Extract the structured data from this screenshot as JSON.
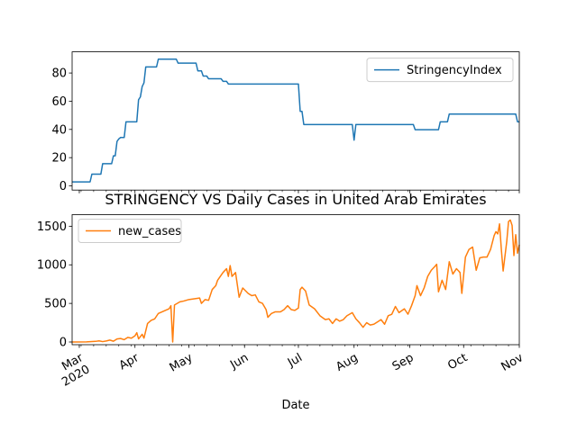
{
  "chart_data": [
    {
      "type": "line",
      "title": "",
      "xlabel": "",
      "ylabel": "",
      "legend": "top-right",
      "grid": false,
      "x_range": [
        "2020-02-26",
        "2020-11-01"
      ],
      "ylim": [
        -3,
        95
      ],
      "yticks": [
        0,
        20,
        40,
        60,
        80
      ],
      "series": [
        {
          "name": "StringencyIndex",
          "color": "#1f77b4",
          "points": [
            [
              "2020-02-26",
              2.8
            ],
            [
              "2020-03-07",
              2.8
            ],
            [
              "2020-03-08",
              8.3
            ],
            [
              "2020-03-13",
              8.3
            ],
            [
              "2020-03-14",
              15.7
            ],
            [
              "2020-03-19",
              15.7
            ],
            [
              "2020-03-20",
              21.3
            ],
            [
              "2020-03-21",
              21.3
            ],
            [
              "2020-03-22",
              31.5
            ],
            [
              "2020-03-23",
              33.3
            ],
            [
              "2020-03-24",
              34.3
            ],
            [
              "2020-03-26",
              34.3
            ],
            [
              "2020-03-27",
              45.4
            ],
            [
              "2020-04-02",
              45.4
            ],
            [
              "2020-04-03",
              61.1
            ],
            [
              "2020-04-04",
              63.0
            ],
            [
              "2020-04-05",
              70.4
            ],
            [
              "2020-04-06",
              73.0
            ],
            [
              "2020-04-07",
              84.3
            ],
            [
              "2020-04-13",
              84.3
            ],
            [
              "2020-04-14",
              89.8
            ],
            [
              "2020-04-24",
              89.8
            ],
            [
              "2020-04-25",
              87.0
            ],
            [
              "2020-05-05",
              87.0
            ],
            [
              "2020-05-06",
              81.5
            ],
            [
              "2020-05-08",
              81.5
            ],
            [
              "2020-05-09",
              77.8
            ],
            [
              "2020-05-11",
              77.8
            ],
            [
              "2020-05-12",
              75.9
            ],
            [
              "2020-05-19",
              75.9
            ],
            [
              "2020-05-20",
              74.1
            ],
            [
              "2020-05-22",
              74.1
            ],
            [
              "2020-05-23",
              72.2
            ],
            [
              "2020-07-01",
              72.2
            ],
            [
              "2020-07-02",
              52.8
            ],
            [
              "2020-07-03",
              52.8
            ],
            [
              "2020-07-04",
              43.5
            ],
            [
              "2020-07-31",
              43.5
            ],
            [
              "2020-08-01",
              32.4
            ],
            [
              "2020-08-02",
              43.5
            ],
            [
              "2020-09-03",
              43.5
            ],
            [
              "2020-09-04",
              39.8
            ],
            [
              "2020-09-17",
              39.8
            ],
            [
              "2020-09-18",
              45.4
            ],
            [
              "2020-09-22",
              45.4
            ],
            [
              "2020-09-23",
              50.9
            ],
            [
              "2020-10-30",
              50.9
            ],
            [
              "2020-10-31",
              45.4
            ],
            [
              "2020-11-01",
              45.4
            ]
          ]
        }
      ]
    },
    {
      "type": "line",
      "title": "STRINGENCY VS Daily Cases in United Arab Emirates",
      "xlabel": "Date",
      "ylabel": "",
      "legend": "top-left",
      "grid": false,
      "x_range": [
        "2020-02-26",
        "2020-11-01"
      ],
      "ylim": [
        -35,
        1650
      ],
      "yticks": [
        0,
        500,
        1000,
        1500
      ],
      "xticks": [
        {
          "date": "2020-03-01",
          "label": "Mar",
          "sub": "2020"
        },
        {
          "date": "2020-04-01",
          "label": "Apr",
          "sub": ""
        },
        {
          "date": "2020-05-01",
          "label": "May",
          "sub": ""
        },
        {
          "date": "2020-06-01",
          "label": "Jun",
          "sub": ""
        },
        {
          "date": "2020-07-01",
          "label": "Jul",
          "sub": ""
        },
        {
          "date": "2020-08-01",
          "label": "Aug",
          "sub": ""
        },
        {
          "date": "2020-09-01",
          "label": "Sep",
          "sub": ""
        },
        {
          "date": "2020-10-01",
          "label": "Oct",
          "sub": ""
        },
        {
          "date": "2020-11-01",
          "label": "Nov",
          "sub": ""
        }
      ],
      "series": [
        {
          "name": "new_cases",
          "color": "#ff7f0e",
          "points": [
            [
              "2020-02-26",
              0
            ],
            [
              "2020-03-05",
              2
            ],
            [
              "2020-03-10",
              8
            ],
            [
              "2020-03-12",
              15
            ],
            [
              "2020-03-14",
              5
            ],
            [
              "2020-03-16",
              13
            ],
            [
              "2020-03-18",
              25
            ],
            [
              "2020-03-20",
              10
            ],
            [
              "2020-03-22",
              40
            ],
            [
              "2020-03-24",
              45
            ],
            [
              "2020-03-26",
              30
            ],
            [
              "2020-03-28",
              60
            ],
            [
              "2020-03-30",
              50
            ],
            [
              "2020-04-01",
              80
            ],
            [
              "2020-04-02",
              120
            ],
            [
              "2020-04-03",
              40
            ],
            [
              "2020-04-05",
              100
            ],
            [
              "2020-04-06",
              50
            ],
            [
              "2020-04-08",
              240
            ],
            [
              "2020-04-10",
              280
            ],
            [
              "2020-04-12",
              300
            ],
            [
              "2020-04-14",
              370
            ],
            [
              "2020-04-17",
              400
            ],
            [
              "2020-04-20",
              430
            ],
            [
              "2020-04-21",
              470
            ],
            [
              "2020-04-22",
              0
            ],
            [
              "2020-04-23",
              480
            ],
            [
              "2020-04-26",
              520
            ],
            [
              "2020-04-28",
              530
            ],
            [
              "2020-05-01",
              550
            ],
            [
              "2020-05-04",
              560
            ],
            [
              "2020-05-07",
              570
            ],
            [
              "2020-05-08",
              500
            ],
            [
              "2020-05-10",
              550
            ],
            [
              "2020-05-12",
              540
            ],
            [
              "2020-05-14",
              680
            ],
            [
              "2020-05-16",
              730
            ],
            [
              "2020-05-17",
              800
            ],
            [
              "2020-05-20",
              900
            ],
            [
              "2020-05-22",
              950
            ],
            [
              "2020-05-23",
              850
            ],
            [
              "2020-05-24",
              990
            ],
            [
              "2020-05-25",
              850
            ],
            [
              "2020-05-27",
              900
            ],
            [
              "2020-05-29",
              580
            ],
            [
              "2020-05-31",
              700
            ],
            [
              "2020-06-03",
              630
            ],
            [
              "2020-06-05",
              600
            ],
            [
              "2020-06-07",
              610
            ],
            [
              "2020-06-09",
              520
            ],
            [
              "2020-06-11",
              500
            ],
            [
              "2020-06-13",
              420
            ],
            [
              "2020-06-14",
              320
            ],
            [
              "2020-06-16",
              370
            ],
            [
              "2020-06-18",
              390
            ],
            [
              "2020-06-21",
              390
            ],
            [
              "2020-06-23",
              420
            ],
            [
              "2020-06-25",
              470
            ],
            [
              "2020-06-27",
              420
            ],
            [
              "2020-06-29",
              410
            ],
            [
              "2020-07-01",
              440
            ],
            [
              "2020-07-02",
              680
            ],
            [
              "2020-07-03",
              710
            ],
            [
              "2020-07-05",
              660
            ],
            [
              "2020-07-07",
              480
            ],
            [
              "2020-07-10",
              430
            ],
            [
              "2020-07-13",
              340
            ],
            [
              "2020-07-16",
              290
            ],
            [
              "2020-07-18",
              300
            ],
            [
              "2020-07-20",
              240
            ],
            [
              "2020-07-22",
              300
            ],
            [
              "2020-07-24",
              270
            ],
            [
              "2020-07-26",
              290
            ],
            [
              "2020-07-28",
              340
            ],
            [
              "2020-07-31",
              380
            ],
            [
              "2020-08-02",
              300
            ],
            [
              "2020-08-04",
              250
            ],
            [
              "2020-08-06",
              190
            ],
            [
              "2020-08-08",
              250
            ],
            [
              "2020-08-10",
              220
            ],
            [
              "2020-08-12",
              230
            ],
            [
              "2020-08-14",
              260
            ],
            [
              "2020-08-16",
              290
            ],
            [
              "2020-08-18",
              230
            ],
            [
              "2020-08-20",
              340
            ],
            [
              "2020-08-22",
              360
            ],
            [
              "2020-08-24",
              460
            ],
            [
              "2020-08-26",
              380
            ],
            [
              "2020-08-29",
              430
            ],
            [
              "2020-08-31",
              360
            ],
            [
              "2020-09-02",
              470
            ],
            [
              "2020-09-04",
              600
            ],
            [
              "2020-09-05",
              730
            ],
            [
              "2020-09-07",
              600
            ],
            [
              "2020-09-09",
              700
            ],
            [
              "2020-09-11",
              850
            ],
            [
              "2020-09-13",
              930
            ],
            [
              "2020-09-15",
              980
            ],
            [
              "2020-09-16",
              1007
            ],
            [
              "2020-09-17",
              650
            ],
            [
              "2020-09-19",
              800
            ],
            [
              "2020-09-21",
              680
            ],
            [
              "2020-09-23",
              1040
            ],
            [
              "2020-09-25",
              880
            ],
            [
              "2020-09-27",
              950
            ],
            [
              "2020-09-29",
              900
            ],
            [
              "2020-09-30",
              630
            ],
            [
              "2020-10-02",
              1100
            ],
            [
              "2020-10-04",
              1200
            ],
            [
              "2020-10-06",
              1230
            ],
            [
              "2020-10-08",
              930
            ],
            [
              "2020-10-10",
              1090
            ],
            [
              "2020-10-12",
              1100
            ],
            [
              "2020-10-14",
              1100
            ],
            [
              "2020-10-16",
              1200
            ],
            [
              "2020-10-18",
              1380
            ],
            [
              "2020-10-19",
              1430
            ],
            [
              "2020-10-20",
              1400
            ],
            [
              "2020-10-21",
              1530
            ],
            [
              "2020-10-22",
              1200
            ],
            [
              "2020-10-23",
              920
            ],
            [
              "2020-10-25",
              1300
            ],
            [
              "2020-10-26",
              1560
            ],
            [
              "2020-10-27",
              1580
            ],
            [
              "2020-10-28",
              1510
            ],
            [
              "2020-10-29",
              1120
            ],
            [
              "2020-10-30",
              1390
            ],
            [
              "2020-10-31",
              1150
            ],
            [
              "2020-11-01",
              1260
            ]
          ]
        }
      ]
    }
  ]
}
